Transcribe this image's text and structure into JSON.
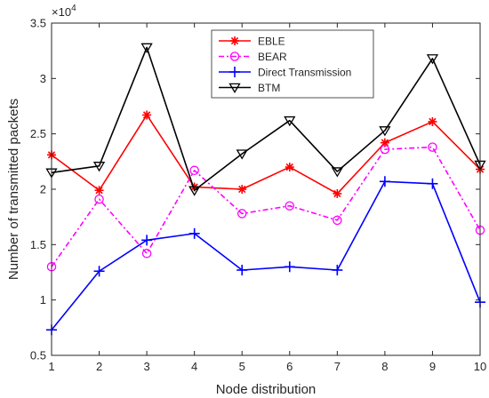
{
  "chart_data": {
    "type": "line",
    "title": "",
    "xlabel": "Node distribution",
    "ylabel": "Number of transmitted packets",
    "exponent_label": "×10^4",
    "exponent_base": "×10",
    "exponent_power": "4",
    "x": [
      1,
      2,
      3,
      4,
      5,
      6,
      7,
      8,
      9,
      10
    ],
    "xlim": [
      1,
      10
    ],
    "ylim": [
      0.5,
      3.5
    ],
    "xticks": [
      "1",
      "2",
      "3",
      "4",
      "5",
      "6",
      "7",
      "8",
      "9",
      "10"
    ],
    "yticks": [
      {
        "v": 0.5,
        "label": "0.5"
      },
      {
        "v": 1.0,
        "label": "1"
      },
      {
        "v": 1.5,
        "label": "1.5"
      },
      {
        "v": 2.0,
        "label": "2"
      },
      {
        "v": 2.5,
        "label": "2.5"
      },
      {
        "v": 3.0,
        "label": "3"
      },
      {
        "v": 3.5,
        "label": "3.5"
      }
    ],
    "grid": false,
    "legend_position": "top-center",
    "series": [
      {
        "name": "EBLE",
        "color": "#ff0000",
        "marker": "asterisk",
        "dash": "",
        "values": [
          2.31,
          1.99,
          2.67,
          2.02,
          2.0,
          2.2,
          1.96,
          2.42,
          2.61,
          2.18
        ]
      },
      {
        "name": "BEAR",
        "color": "#ff00ff",
        "marker": "circle",
        "dash": "6,3,2,3",
        "values": [
          1.3,
          1.91,
          1.42,
          2.17,
          1.78,
          1.85,
          1.72,
          2.36,
          2.38,
          1.63
        ]
      },
      {
        "name": "Direct Transmission",
        "color": "#0000ff",
        "marker": "plus",
        "dash": "",
        "values": [
          0.73,
          1.26,
          1.54,
          1.6,
          1.27,
          1.3,
          1.27,
          2.07,
          2.05,
          0.98
        ]
      },
      {
        "name": "BTM",
        "color": "#000000",
        "marker": "triangle-down",
        "dash": "",
        "values": [
          2.15,
          2.21,
          3.28,
          1.99,
          2.32,
          2.62,
          2.16,
          2.53,
          3.18,
          2.22
        ]
      }
    ]
  }
}
